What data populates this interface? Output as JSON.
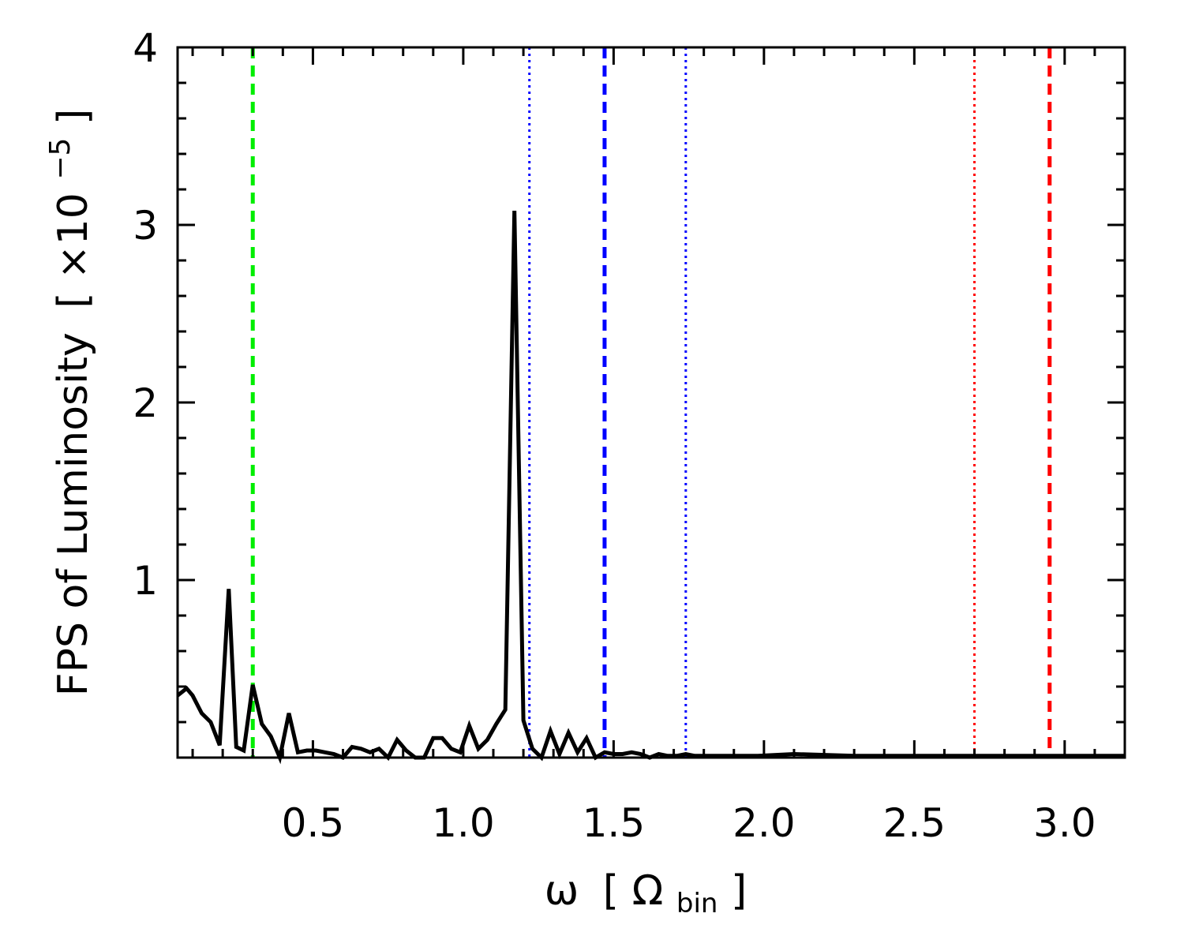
{
  "chart_data": {
    "type": "line",
    "title": "",
    "xlabel": {
      "symbol": "ω",
      "open": "[",
      "main": "Ω",
      "sub": "bin",
      "close": "]"
    },
    "ylabel": {
      "text": "FPS of Luminosity",
      "open": "[",
      "mult": "×10",
      "exp": "−5",
      "close": "]"
    },
    "xlim": [
      0.05,
      3.2
    ],
    "ylim": [
      0,
      4
    ],
    "x_ticks": [
      0.5,
      1.0,
      1.5,
      2.0,
      2.5,
      3.0
    ],
    "x_tick_labels": [
      "0.5",
      "1.0",
      "1.5",
      "2.0",
      "2.5",
      "3.0"
    ],
    "y_ticks": [
      1,
      2,
      3,
      4
    ],
    "y_tick_labels": [
      "1",
      "2",
      "3",
      "4"
    ],
    "grid": false,
    "series": [
      {
        "color": "#000000",
        "x": [
          0.05,
          0.08,
          0.1,
          0.13,
          0.16,
          0.19,
          0.22,
          0.245,
          0.27,
          0.3,
          0.33,
          0.36,
          0.39,
          0.42,
          0.45,
          0.48,
          0.51,
          0.54,
          0.57,
          0.6,
          0.63,
          0.66,
          0.69,
          0.72,
          0.75,
          0.78,
          0.81,
          0.84,
          0.87,
          0.9,
          0.93,
          0.96,
          0.99,
          1.02,
          1.05,
          1.08,
          1.11,
          1.14,
          1.17,
          1.2,
          1.23,
          1.26,
          1.29,
          1.32,
          1.35,
          1.38,
          1.41,
          1.44,
          1.47,
          1.5,
          1.53,
          1.56,
          1.59,
          1.62,
          1.65,
          1.68,
          1.71,
          1.74,
          1.77,
          1.8,
          1.83,
          1.86,
          1.89,
          1.92,
          1.95,
          1.98,
          2.1,
          2.3,
          2.5,
          2.7,
          2.9,
          3.1,
          3.2
        ],
        "values": [
          0.35,
          0.39,
          0.35,
          0.25,
          0.2,
          0.07,
          0.95,
          0.06,
          0.04,
          0.41,
          0.19,
          0.12,
          0.0,
          0.25,
          0.03,
          0.04,
          0.04,
          0.03,
          0.02,
          0.0,
          0.06,
          0.05,
          0.03,
          0.05,
          0.0,
          0.1,
          0.04,
          0.0,
          0.0,
          0.11,
          0.11,
          0.05,
          0.03,
          0.18,
          0.05,
          0.1,
          0.19,
          0.27,
          3.08,
          0.21,
          0.05,
          0.0,
          0.15,
          0.02,
          0.14,
          0.03,
          0.11,
          0.0,
          0.03,
          0.02,
          0.02,
          0.03,
          0.02,
          0.0,
          0.02,
          0.01,
          0.01,
          0.02,
          0.01,
          0.01,
          0.01,
          0.01,
          0.01,
          0.01,
          0.01,
          0.01,
          0.02,
          0.01,
          0.01,
          0.01,
          0.01,
          0.01,
          0.01
        ]
      }
    ],
    "reference_lines": [
      {
        "x": 0.3,
        "color": "#00ee00",
        "style": "dashed"
      },
      {
        "x": 1.22,
        "color": "#0000ff",
        "style": "dotted"
      },
      {
        "x": 1.47,
        "color": "#0000ff",
        "style": "dashed"
      },
      {
        "x": 1.74,
        "color": "#0000ff",
        "style": "dotted"
      },
      {
        "x": 2.7,
        "color": "#ff0000",
        "style": "dotted"
      },
      {
        "x": 2.95,
        "color": "#ff0000",
        "style": "dashed"
      },
      {
        "x": 3.2,
        "color": "#ff0000",
        "style": "dotted"
      }
    ]
  }
}
